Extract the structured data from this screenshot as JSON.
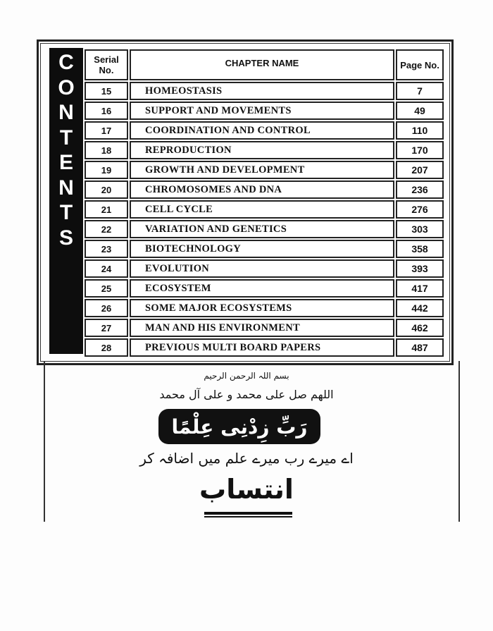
{
  "sidebar_letters": [
    "C",
    "O",
    "N",
    "T",
    "E",
    "N",
    "T",
    "S"
  ],
  "table": {
    "headers": {
      "serial": "Serial No.",
      "chapter": "CHAPTER NAME",
      "page": "Page No."
    },
    "rows": [
      {
        "serial": "15",
        "chapter": "HOMEOSTASIS",
        "page": "7"
      },
      {
        "serial": "16",
        "chapter": "SUPPORT AND MOVEMENTS",
        "page": "49"
      },
      {
        "serial": "17",
        "chapter": "COORDINATION AND CONTROL",
        "page": "110"
      },
      {
        "serial": "18",
        "chapter": "REPRODUCTION",
        "page": "170"
      },
      {
        "serial": "19",
        "chapter": "GROWTH AND DEVELOPMENT",
        "page": "207"
      },
      {
        "serial": "20",
        "chapter": "CHROMOSOMES AND DNA",
        "page": "236"
      },
      {
        "serial": "21",
        "chapter": "CELL CYCLE",
        "page": "276"
      },
      {
        "serial": "22",
        "chapter": "VARIATION AND GENETICS",
        "page": "303"
      },
      {
        "serial": "23",
        "chapter": "BIOTECHNOLOGY",
        "page": "358"
      },
      {
        "serial": "24",
        "chapter": "EVOLUTION",
        "page": "393"
      },
      {
        "serial": "25",
        "chapter": "ECOSYSTEM",
        "page": "417"
      },
      {
        "serial": "26",
        "chapter": "SOME MAJOR ECOSYSTEMS",
        "page": "442"
      },
      {
        "serial": "27",
        "chapter": "MAN AND HIS ENVIRONMENT",
        "page": "462"
      },
      {
        "serial": "28",
        "chapter": "PREVIOUS MULTI BOARD PAPERS",
        "page": "487"
      }
    ]
  },
  "dedication": {
    "bismillah": "بسم اللہ الرحمن الرحیم",
    "durood": "اللھم صل علی محمد و علی آل محمد",
    "verse": "رَبِّ زِدْنِی عِلْمًا",
    "translation": "اے میرے رب میرے علم میں اضافہ کر",
    "heading": "انتساب"
  }
}
